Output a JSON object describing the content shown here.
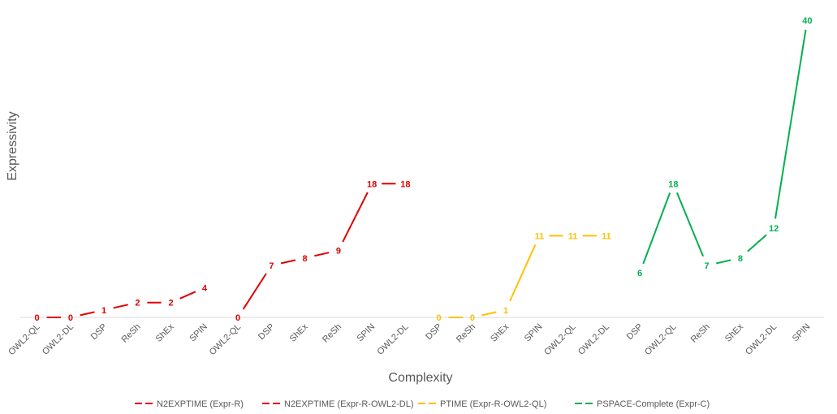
{
  "chart_data": {
    "type": "line",
    "xlabel": "Complexity",
    "ylabel": "Expressivity",
    "ylim": [
      0,
      40
    ],
    "grid": false,
    "legend_position": "bottom",
    "series": [
      {
        "name": "N2EXPTIME (Expr-R)",
        "color": "#e00000",
        "categories": [
          "OWL2-QL",
          "OWL2-DL",
          "DSP",
          "ReSh",
          "ShEx",
          "SPIN"
        ],
        "values": [
          0,
          0,
          1,
          2,
          2,
          4
        ]
      },
      {
        "name": "N2EXPTIME (Expr-R-OWL2-DL)",
        "color": "#e00000",
        "categories": [
          "OWL2-QL",
          "DSP",
          "ShEx",
          "ReSh",
          "SPIN",
          "OWL2-DL"
        ],
        "values": [
          0,
          7,
          8,
          9,
          18,
          18
        ]
      },
      {
        "name": "PTIME (Expr-R-OWL2-QL)",
        "color": "#ffc000",
        "categories": [
          "DSP",
          "ReSh",
          "ShEx",
          "SPIN",
          "OWL2-QL",
          "OWL2-DL"
        ],
        "values": [
          0,
          0,
          1,
          11,
          11,
          11
        ]
      },
      {
        "name": "PSPACE-Complete (Expr-C)",
        "color": "#00b050",
        "categories": [
          "DSP",
          "OWL2-QL",
          "ReSh",
          "ShEx",
          "OWL2-DL",
          "SPIN"
        ],
        "values": [
          6,
          18,
          7,
          8,
          12,
          40
        ]
      }
    ]
  }
}
